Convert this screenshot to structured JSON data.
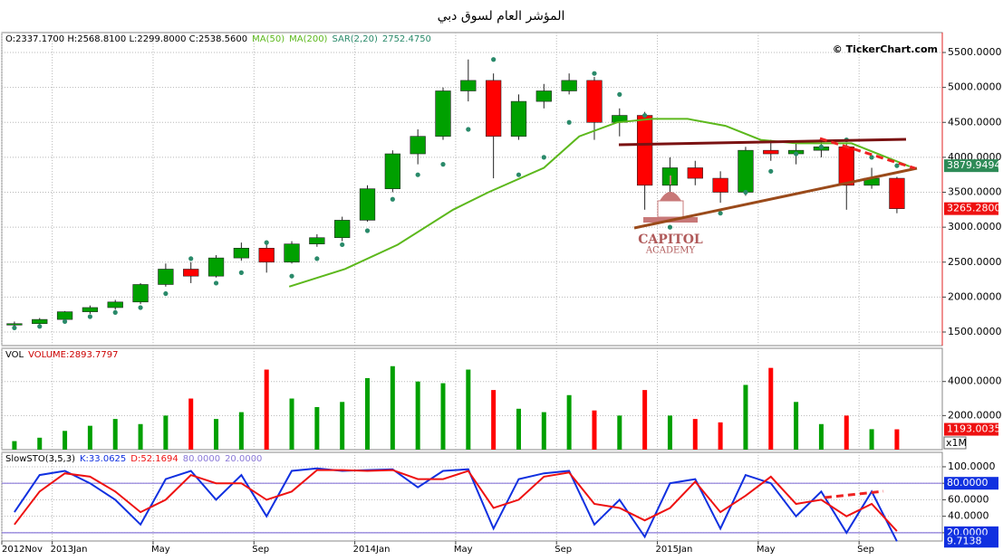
{
  "title": "المؤشر العام لسوق دبي",
  "watermark": "© TickerChart.com",
  "logo": {
    "line1": "CAPITOL",
    "line2": "ACADEMY"
  },
  "chart_data": [
    {
      "type": "candlestick",
      "ohlc_text": "O:2337.1700 H:2568.8100 L:2299.8000 C:2538.5600",
      "up_color": "#00a000",
      "down_color": "#ff0000",
      "x": [
        0.5,
        1.5,
        2.5,
        3.5,
        4.5,
        5.5,
        6.5,
        7.5,
        8.5,
        9.5,
        10.5,
        11.5,
        12.5,
        13.5,
        14.5,
        15.5,
        16.5,
        17.5,
        18.5,
        19.5,
        20.5,
        21.5,
        22.5,
        23.5,
        24.5,
        25.5,
        26.5,
        27.5,
        28.5,
        29.5,
        30.5,
        31.5,
        32.5,
        33.5,
        34.5,
        35.5
      ],
      "open": [
        1600,
        1620,
        1680,
        1790,
        1850,
        1930,
        2180,
        2400,
        2300,
        2560,
        2700,
        2500,
        2760,
        2850,
        3100,
        3550,
        4050,
        4300,
        4950,
        5100,
        4300,
        4800,
        4950,
        5100,
        4500,
        4600,
        3600,
        3850,
        3700,
        3500,
        4100,
        4050,
        4100,
        4150,
        3600,
        3700
      ],
      "high": [
        1650,
        1700,
        1800,
        1880,
        1960,
        2200,
        2480,
        2500,
        2600,
        2780,
        2760,
        2800,
        2900,
        3150,
        3600,
        4100,
        4400,
        5000,
        5400,
        5200,
        4900,
        5050,
        5200,
        5150,
        4700,
        4650,
        4000,
        3950,
        3800,
        4150,
        4250,
        4200,
        4250,
        4200,
        3850,
        3720
      ],
      "low": [
        1560,
        1600,
        1670,
        1760,
        1820,
        1900,
        2150,
        2200,
        2280,
        2520,
        2350,
        2480,
        2720,
        2800,
        3080,
        3500,
        3900,
        4250,
        4800,
        3700,
        4250,
        4700,
        4900,
        4250,
        4300,
        3250,
        3500,
        3600,
        3350,
        3450,
        3950,
        3900,
        4000,
        3250,
        3550,
        3200
      ],
      "close": [
        1620,
        1680,
        1790,
        1850,
        1930,
        2180,
        2400,
        2300,
        2560,
        2700,
        2500,
        2760,
        2850,
        3100,
        3550,
        4050,
        4300,
        4950,
        5100,
        4300,
        4800,
        4950,
        5100,
        4500,
        4600,
        3600,
        3850,
        3700,
        3500,
        4100,
        4050,
        4100,
        4150,
        3600,
        3700,
        3265
      ],
      "series": [
        {
          "name": "MA(50)",
          "color": "#5cb81c",
          "style": "line",
          "x": [
            11.4,
            13.6,
            15.7,
            17.9,
            19.3,
            21.5,
            22.9,
            24.4,
            25.8,
            27.2,
            28.7,
            30.1,
            31.5,
            33.7,
            36.0
          ],
          "values": [
            2150,
            2400,
            2750,
            3250,
            3500,
            3850,
            4300,
            4500,
            4550,
            4550,
            4450,
            4250,
            4200,
            4200,
            3870
          ]
        },
        {
          "name": "MA(200)",
          "color": "#5cb81c"
        },
        {
          "name": "SAR(2,20)",
          "color": "#2a8a6a",
          "style": "dots",
          "values": [
            1560,
            1580,
            1650,
            1720,
            1780,
            1850,
            2050,
            2550,
            2200,
            2350,
            2780,
            2300,
            2550,
            2750,
            2950,
            3400,
            3750,
            3900,
            4400,
            5400,
            3750,
            4000,
            4500,
            5200,
            4900,
            4600,
            3000,
            3100,
            3200,
            3500,
            3800,
            4050,
            4150,
            4250,
            4000,
            3880
          ]
        }
      ],
      "sar_value": "2752.4750",
      "ylim": [
        1306,
        5785
      ],
      "yticks": [
        {
          "value": 1500,
          "label": "1500.0000"
        },
        {
          "value": 2000,
          "label": "2000.0000"
        },
        {
          "value": 2500,
          "label": "2500.0000"
        },
        {
          "value": 3000,
          "label": "3000.0000"
        },
        {
          "value": 3500,
          "label": "3500.0000"
        },
        {
          "value": 4000,
          "label": "4000.0000"
        },
        {
          "value": 4500,
          "label": "4500.0000"
        },
        {
          "value": 5000,
          "label": "5000.0000"
        },
        {
          "value": 5500,
          "label": "5500.0000"
        }
      ],
      "markers": [
        {
          "value": 3879.9494,
          "label": "3879.9494",
          "color": "#2e8b57"
        },
        {
          "value": 3265.28,
          "label": "3265.2800",
          "color": "#ee1111"
        }
      ],
      "grid": true
    },
    {
      "type": "bar",
      "name": "VOL",
      "value_text": "VOLUME:2893.7797",
      "unit_label": "x1M",
      "values": [
        500,
        700,
        1100,
        1400,
        1800,
        1500,
        2000,
        3000,
        1800,
        2200,
        4700,
        3000,
        2500,
        2800,
        4200,
        4900,
        4000,
        3900,
        4700,
        3500,
        2400,
        2200,
        3200,
        2300,
        2000,
        3500,
        2000,
        1800,
        1600,
        3800,
        4800,
        2800,
        1500,
        2000,
        1200,
        1193.0035
      ],
      "ylim": [
        0,
        5950
      ],
      "yticks": [
        {
          "value": 2000,
          "label": "2000.0000"
        },
        {
          "value": 4000,
          "label": "4000.0000"
        }
      ],
      "markers": [
        {
          "value": 1193.0035,
          "label": "1193.0035",
          "color": "#ee1111"
        }
      ],
      "grid": true
    },
    {
      "type": "line",
      "name": "SlowSTO(3,5,3)",
      "series": [
        {
          "name": "K:33.0625",
          "color": "#1030e0",
          "values": [
            45,
            90,
            95,
            80,
            60,
            30,
            85,
            95,
            60,
            90,
            40,
            95,
            98,
            95,
            96,
            97,
            75,
            95,
            97,
            25,
            85,
            92,
            95,
            30,
            60,
            15,
            80,
            85,
            25,
            90,
            80,
            40,
            70,
            20,
            70,
            9.7138
          ]
        },
        {
          "name": "D:52.1694",
          "color": "#ee1111",
          "values": [
            30,
            70,
            92,
            88,
            70,
            45,
            60,
            90,
            80,
            80,
            60,
            70,
            96,
            96,
            95,
            96,
            85,
            85,
            95,
            50,
            60,
            88,
            93,
            55,
            50,
            35,
            50,
            82,
            45,
            65,
            88,
            55,
            60,
            40,
            55,
            22
          ]
        }
      ],
      "levels": [
        {
          "value": 80,
          "label": "80.0000"
        },
        {
          "value": 20,
          "label": "20.0000"
        }
      ],
      "level_color": "#8a78d8",
      "ylim": [
        10,
        117.5
      ],
      "yticks": [
        {
          "value": 20,
          "label": "20.0000"
        },
        {
          "value": 40,
          "label": "40.0000"
        },
        {
          "value": 60,
          "label": "60.0000"
        },
        {
          "value": 80,
          "label": "80.0000"
        },
        {
          "value": 100,
          "label": "100.0000"
        }
      ],
      "markers": [
        {
          "value": 9.7138,
          "label": "9.7138",
          "color": "#1030e0"
        }
      ],
      "xlim": [
        0,
        37.3
      ],
      "xticks": [
        {
          "value": 0,
          "label": "2012Nov"
        },
        {
          "value": 2,
          "label": "2013Jan"
        },
        {
          "value": 6,
          "label": "May"
        },
        {
          "value": 10,
          "label": "Sep"
        },
        {
          "value": 14,
          "label": "2014Jan"
        },
        {
          "value": 18,
          "label": "May"
        },
        {
          "value": 22,
          "label": "Sep"
        },
        {
          "value": 26,
          "label": "2015Jan"
        },
        {
          "value": 30,
          "label": "May"
        },
        {
          "value": 34,
          "label": "Sep"
        }
      ],
      "grid": true
    }
  ]
}
